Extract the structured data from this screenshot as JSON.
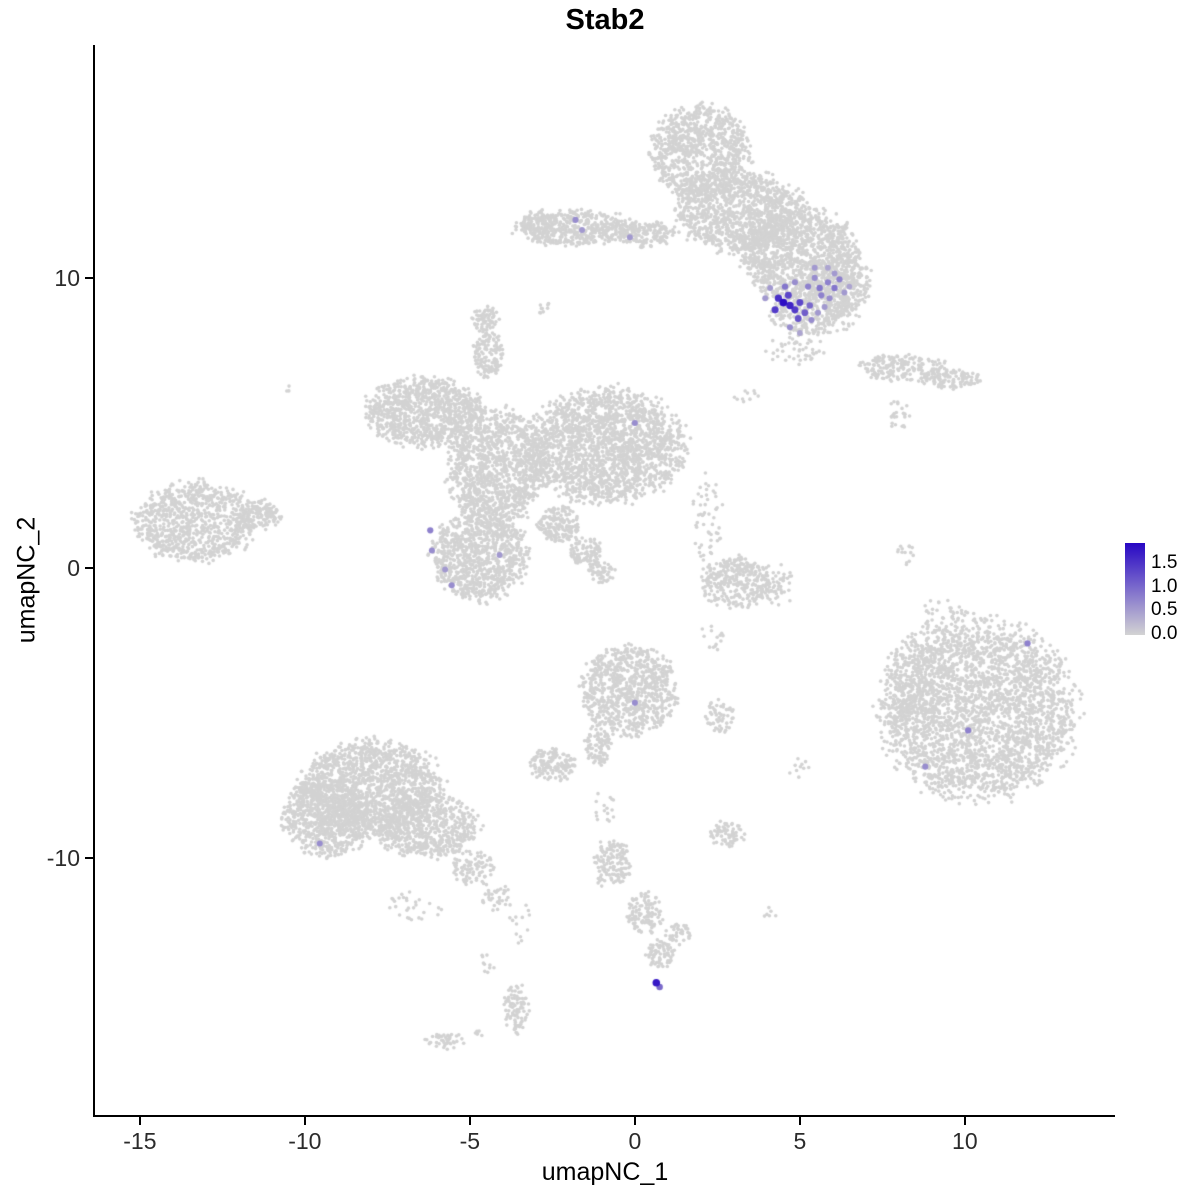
{
  "title": "Stab2",
  "chart_data": {
    "type": "scatter",
    "title": "Stab2",
    "xlabel": "umapNC_1",
    "ylabel": "umapNC_2",
    "xlim": [
      -16.36,
      14.55
    ],
    "ylim": [
      -18.86,
      18.03
    ],
    "x_ticks": [
      -15,
      -10,
      -5,
      0,
      5,
      10
    ],
    "y_ticks": [
      10,
      0,
      -10
    ],
    "grid": false,
    "background_color": "#D3D3D3",
    "point_radius": 1.8,
    "legend": {
      "labels": [
        "1.5",
        "1.0",
        "0.5",
        "0.0"
      ],
      "values": [
        1.5,
        1.0,
        0.5,
        0.0
      ],
      "high_color": "#2707C4",
      "low_color": "#D3D3D3",
      "vmax": 1.75
    },
    "background_clusters": [
      {
        "x": 2.0,
        "y": 14.3,
        "rx": 1.45,
        "ry": 1.6,
        "n": 950
      },
      {
        "x": 3.2,
        "y": 12.3,
        "rx": 1.9,
        "ry": 1.35,
        "n": 1100
      },
      {
        "x": 5.0,
        "y": 10.8,
        "rx": 1.75,
        "ry": 1.5,
        "n": 1250
      },
      {
        "x": -1.75,
        "y": 11.7,
        "rx": 1.85,
        "ry": 0.6,
        "n": 480
      },
      {
        "x": -2.95,
        "y": 11.85,
        "rx": 0.5,
        "ry": 0.45,
        "n": 90
      },
      {
        "x": 0.35,
        "y": 11.5,
        "rx": 0.8,
        "ry": 0.45,
        "n": 150
      },
      {
        "x": 5.4,
        "y": 8.8,
        "rx": 1.25,
        "ry": 0.8,
        "n": 330
      },
      {
        "x": 6.3,
        "y": 9.8,
        "rx": 0.85,
        "ry": 0.9,
        "n": 260
      },
      {
        "x": 4.9,
        "y": 7.5,
        "rx": 0.9,
        "ry": 0.5,
        "n": 45
      },
      {
        "x": 8.1,
        "y": 6.9,
        "rx": 1.3,
        "ry": 0.45,
        "n": 190
      },
      {
        "x": 9.6,
        "y": 6.5,
        "rx": 0.9,
        "ry": 0.35,
        "n": 110
      },
      {
        "x": 8.0,
        "y": 5.3,
        "rx": 0.3,
        "ry": 0.6,
        "n": 25
      },
      {
        "x": -6.4,
        "y": 5.4,
        "rx": 1.7,
        "ry": 1.15,
        "n": 950
      },
      {
        "x": -4.2,
        "y": 3.5,
        "rx": 1.45,
        "ry": 1.9,
        "n": 1200
      },
      {
        "x": -0.9,
        "y": 4.2,
        "rx": 2.3,
        "ry": 1.9,
        "n": 2000
      },
      {
        "x": -4.7,
        "y": 0.4,
        "rx": 1.4,
        "ry": 1.5,
        "n": 950
      },
      {
        "x": -2.3,
        "y": 1.5,
        "rx": 0.65,
        "ry": 0.6,
        "n": 180
      },
      {
        "x": -1.5,
        "y": 0.55,
        "rx": 0.5,
        "ry": 0.5,
        "n": 100
      },
      {
        "x": -1.0,
        "y": -0.15,
        "rx": 0.4,
        "ry": 0.35,
        "n": 50
      },
      {
        "x": -4.45,
        "y": 7.35,
        "rx": 0.45,
        "ry": 0.8,
        "n": 140
      },
      {
        "x": -4.55,
        "y": 8.6,
        "rx": 0.4,
        "ry": 0.45,
        "n": 70
      },
      {
        "x": 2.2,
        "y": 1.6,
        "rx": 0.45,
        "ry": 1.6,
        "n": 55
      },
      {
        "x": 3.1,
        "y": -0.5,
        "rx": 1.05,
        "ry": 0.85,
        "n": 330
      },
      {
        "x": 4.35,
        "y": -0.6,
        "rx": 0.5,
        "ry": 0.7,
        "n": 45
      },
      {
        "x": -13.3,
        "y": 1.6,
        "rx": 1.75,
        "ry": 1.35,
        "n": 880
      },
      {
        "x": -11.4,
        "y": 1.85,
        "rx": 0.65,
        "ry": 0.5,
        "n": 130
      },
      {
        "x": -0.2,
        "y": -4.2,
        "rx": 1.4,
        "ry": 1.5,
        "n": 850
      },
      {
        "x": -1.1,
        "y": -6.1,
        "rx": 0.4,
        "ry": 0.7,
        "n": 90
      },
      {
        "x": 2.6,
        "y": -5.1,
        "rx": 0.45,
        "ry": 0.55,
        "n": 55
      },
      {
        "x": -2.5,
        "y": -6.8,
        "rx": 0.7,
        "ry": 0.55,
        "n": 150
      },
      {
        "x": 10.4,
        "y": -4.9,
        "rx": 2.85,
        "ry": 2.95,
        "n": 2900
      },
      {
        "x": 8.5,
        "y": -4.0,
        "rx": 0.8,
        "ry": 1.7,
        "n": 200
      },
      {
        "x": 9.3,
        "y": -1.7,
        "rx": 0.75,
        "ry": 0.6,
        "n": 55
      },
      {
        "x": 8.25,
        "y": 0.6,
        "rx": 0.3,
        "ry": 0.45,
        "n": 14
      },
      {
        "x": -8.0,
        "y": -7.6,
        "rx": 2.1,
        "ry": 1.6,
        "n": 1500
      },
      {
        "x": -9.3,
        "y": -8.6,
        "rx": 1.35,
        "ry": 1.3,
        "n": 700
      },
      {
        "x": -6.3,
        "y": -8.9,
        "rx": 1.5,
        "ry": 1.1,
        "n": 620
      },
      {
        "x": -4.9,
        "y": -10.3,
        "rx": 0.6,
        "ry": 0.6,
        "n": 90
      },
      {
        "x": -4.25,
        "y": -11.3,
        "rx": 0.4,
        "ry": 0.5,
        "n": 35
      },
      {
        "x": -6.6,
        "y": -11.7,
        "rx": 0.9,
        "ry": 0.6,
        "n": 28
      },
      {
        "x": -0.7,
        "y": -10.2,
        "rx": 0.55,
        "ry": 0.8,
        "n": 140
      },
      {
        "x": 0.3,
        "y": -11.9,
        "rx": 0.5,
        "ry": 0.75,
        "n": 115
      },
      {
        "x": 0.8,
        "y": -13.3,
        "rx": 0.45,
        "ry": 0.5,
        "n": 75
      },
      {
        "x": 1.3,
        "y": -12.6,
        "rx": 0.4,
        "ry": 0.35,
        "n": 40
      },
      {
        "x": 2.8,
        "y": -9.2,
        "rx": 0.5,
        "ry": 0.45,
        "n": 70
      },
      {
        "x": -3.6,
        "y": -15.2,
        "rx": 0.4,
        "ry": 0.85,
        "n": 90
      },
      {
        "x": -5.8,
        "y": -16.3,
        "rx": 0.6,
        "ry": 0.3,
        "n": 45
      },
      {
        "x": -4.7,
        "y": -16.0,
        "rx": 0.15,
        "ry": 0.15,
        "n": 6
      },
      {
        "x": -3.5,
        "y": -12.2,
        "rx": 0.35,
        "ry": 0.9,
        "n": 14
      },
      {
        "x": -0.9,
        "y": -8.3,
        "rx": 0.35,
        "ry": 0.6,
        "n": 16
      },
      {
        "x": -10.5,
        "y": 6.2,
        "rx": 0.1,
        "ry": 0.1,
        "n": 3
      },
      {
        "x": -2.75,
        "y": 8.9,
        "rx": 0.3,
        "ry": 0.25,
        "n": 10
      },
      {
        "x": 3.4,
        "y": 5.9,
        "rx": 0.35,
        "ry": 0.3,
        "n": 10
      },
      {
        "x": 2.35,
        "y": -2.4,
        "rx": 0.35,
        "ry": 0.55,
        "n": 14
      },
      {
        "x": 5.0,
        "y": -7.0,
        "rx": 0.35,
        "ry": 0.5,
        "n": 10
      },
      {
        "x": 4.0,
        "y": -12.0,
        "rx": 0.3,
        "ry": 0.3,
        "n": 6
      },
      {
        "x": -4.4,
        "y": -13.6,
        "rx": 0.25,
        "ry": 0.4,
        "n": 10
      }
    ],
    "expressing_cells": [
      {
        "x": 4.5,
        "y": 9.15,
        "v": 1.7
      },
      {
        "x": 4.7,
        "y": 9.05,
        "v": 1.5
      },
      {
        "x": 4.85,
        "y": 8.9,
        "v": 1.3
      },
      {
        "x": 5.0,
        "y": 9.15,
        "v": 1.2
      },
      {
        "x": 4.35,
        "y": 9.3,
        "v": 1.4
      },
      {
        "x": 4.65,
        "y": 9.4,
        "v": 1.2
      },
      {
        "x": 5.15,
        "y": 8.8,
        "v": 1.0
      },
      {
        "x": 5.3,
        "y": 9.05,
        "v": 0.9
      },
      {
        "x": 4.95,
        "y": 8.6,
        "v": 1.1
      },
      {
        "x": 4.25,
        "y": 8.9,
        "v": 1.3
      },
      {
        "x": 5.6,
        "y": 9.65,
        "v": 0.8
      },
      {
        "x": 5.85,
        "y": 9.85,
        "v": 0.7
      },
      {
        "x": 6.05,
        "y": 9.65,
        "v": 0.8
      },
      {
        "x": 5.65,
        "y": 9.4,
        "v": 0.7
      },
      {
        "x": 5.9,
        "y": 9.3,
        "v": 0.6
      },
      {
        "x": 6.2,
        "y": 9.95,
        "v": 0.7
      },
      {
        "x": 5.45,
        "y": 10.0,
        "v": 0.6
      },
      {
        "x": 5.25,
        "y": 9.7,
        "v": 0.7
      },
      {
        "x": 4.85,
        "y": 9.85,
        "v": 0.6
      },
      {
        "x": 4.55,
        "y": 9.7,
        "v": 0.8
      },
      {
        "x": 3.95,
        "y": 9.3,
        "v": 0.5
      },
      {
        "x": 4.1,
        "y": 9.65,
        "v": 0.5
      },
      {
        "x": 5.35,
        "y": 8.55,
        "v": 0.6
      },
      {
        "x": 5.55,
        "y": 8.8,
        "v": 0.5
      },
      {
        "x": 6.35,
        "y": 9.5,
        "v": 0.5
      },
      {
        "x": 6.5,
        "y": 9.7,
        "v": 0.4
      },
      {
        "x": 5.75,
        "y": 9.0,
        "v": 0.5
      },
      {
        "x": 4.7,
        "y": 8.3,
        "v": 0.6
      },
      {
        "x": 5.0,
        "y": 8.1,
        "v": 0.4
      },
      {
        "x": 6.05,
        "y": 10.15,
        "v": 0.5
      },
      {
        "x": 5.85,
        "y": 10.35,
        "v": 0.4
      },
      {
        "x": 5.45,
        "y": 10.35,
        "v": 0.5
      },
      {
        "x": -1.8,
        "y": 12.0,
        "v": 0.6
      },
      {
        "x": -1.6,
        "y": 11.65,
        "v": 0.5
      },
      {
        "x": -0.15,
        "y": 11.4,
        "v": 0.5
      },
      {
        "x": 0.0,
        "y": 5.0,
        "v": 0.6
      },
      {
        "x": -6.2,
        "y": 1.3,
        "v": 0.7
      },
      {
        "x": -6.15,
        "y": 0.6,
        "v": 0.6
      },
      {
        "x": -5.75,
        "y": -0.05,
        "v": 0.5
      },
      {
        "x": -5.55,
        "y": -0.6,
        "v": 0.6
      },
      {
        "x": -4.1,
        "y": 0.45,
        "v": 0.5
      },
      {
        "x": 0.0,
        "y": -4.65,
        "v": 0.6
      },
      {
        "x": 0.65,
        "y": -14.3,
        "v": 1.6
      },
      {
        "x": 0.75,
        "y": -14.45,
        "v": 0.9
      },
      {
        "x": -9.55,
        "y": -9.5,
        "v": 0.6
      },
      {
        "x": 11.9,
        "y": -2.6,
        "v": 0.7
      },
      {
        "x": 10.1,
        "y": -5.6,
        "v": 0.7
      },
      {
        "x": 8.8,
        "y": -6.85,
        "v": 0.6
      }
    ]
  }
}
